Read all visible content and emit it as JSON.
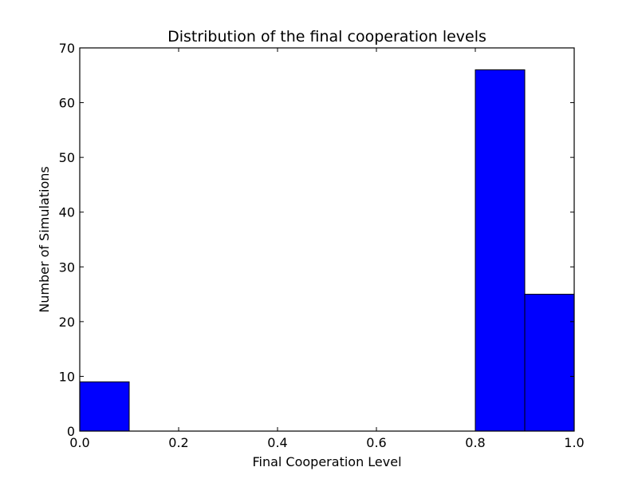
{
  "chart_data": {
    "type": "bar",
    "title": "Distribution of the final cooperation levels",
    "xlabel": "Final Cooperation Level",
    "ylabel": "Number of Simulations",
    "xlim": [
      0.0,
      1.0
    ],
    "ylim": [
      0,
      70
    ],
    "x_ticks": [
      "0.0",
      "0.2",
      "0.4",
      "0.6",
      "0.8",
      "1.0"
    ],
    "y_ticks": [
      "0",
      "10",
      "20",
      "30",
      "40",
      "50",
      "60",
      "70"
    ],
    "bins": [
      {
        "start": 0.0,
        "end": 0.1,
        "value": 9
      },
      {
        "start": 0.8,
        "end": 0.9,
        "value": 66
      },
      {
        "start": 0.9,
        "end": 1.0,
        "value": 25
      }
    ],
    "bar_color": "#0000ff",
    "edge_color": "#000000",
    "grid": false,
    "legend": "none"
  }
}
